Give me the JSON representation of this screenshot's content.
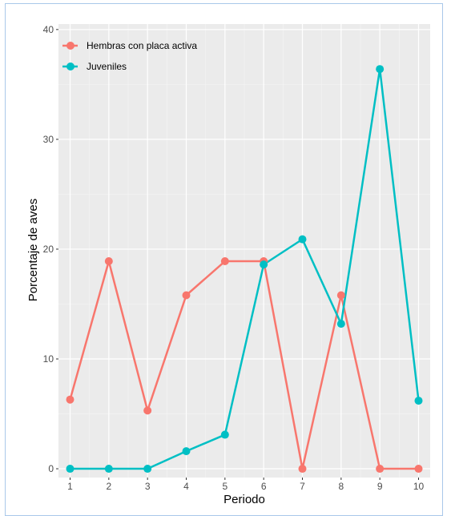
{
  "chart_data": {
    "type": "line",
    "title": "",
    "xlabel": "Periodo",
    "ylabel": "Porcentaje de aves",
    "x": [
      1,
      2,
      3,
      4,
      5,
      6,
      7,
      8,
      9,
      10
    ],
    "x_tick_labels": [
      "1",
      "2",
      "3",
      "4",
      "5",
      "6",
      "7",
      "8",
      "9",
      "10"
    ],
    "y_tick_labels": [
      "0",
      "10",
      "20",
      "30",
      "40"
    ],
    "y_ticks": [
      0,
      10,
      20,
      30,
      40
    ],
    "xlim": [
      0.7,
      10.3
    ],
    "ylim": [
      -0.8,
      40.5
    ],
    "grid": true,
    "legend_position": "top-left",
    "background": "#ebebeb",
    "series": [
      {
        "name": "Hembras con placa activa",
        "color": "#f8766d",
        "values": [
          6.3,
          18.9,
          5.3,
          15.8,
          18.9,
          18.9,
          0,
          15.8,
          0,
          0
        ]
      },
      {
        "name": "Juveniles",
        "color": "#00bfc4",
        "values": [
          0,
          0,
          0,
          1.6,
          3.1,
          18.6,
          20.9,
          13.2,
          36.4,
          6.2
        ]
      }
    ]
  }
}
